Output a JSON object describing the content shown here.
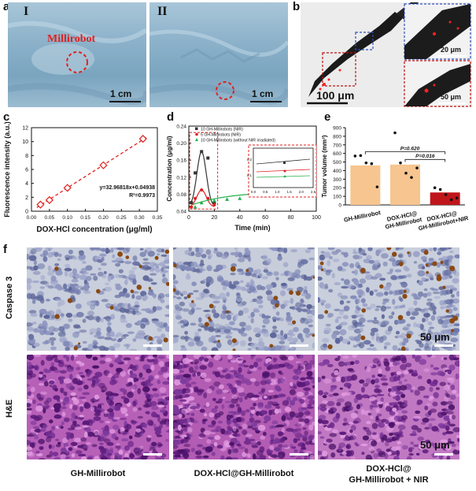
{
  "panels": {
    "a": {
      "label": "a",
      "sub_I": "I",
      "sub_II": "II",
      "millirobot_label": "Millirobot",
      "scale_I": "1 cm",
      "scale_II": "1 cm"
    },
    "b": {
      "label": "b",
      "scale_main": "100 μm",
      "scale_inset_top": "20 μm",
      "scale_inset_bottom": "50 μm"
    },
    "c": {
      "label": "c",
      "equation": "y=32.96818x+0.04938",
      "r2": "R²=0.9973"
    },
    "d": {
      "label": "d"
    },
    "e": {
      "label": "e"
    },
    "f": {
      "label": "f",
      "row1": "Caspase 3",
      "row2": "H&E",
      "scale_top": "50 μm",
      "scale_bottom": "50 μm",
      "col1": "GH-Millirobot",
      "col2": "DOX-HCl@GH-Millirobot",
      "col3_line1": "DOX-HCl@",
      "col3_line2": "GH-Millirobot + NIR"
    }
  },
  "chart_data": [
    {
      "id": "c",
      "type": "scatter",
      "xlabel": "DOX-HCl concentration (μg/ml)",
      "ylabel": "Fluorescence intensity (a.u.)",
      "xlim": [
        0,
        0.35
      ],
      "ylim": [
        0,
        12
      ],
      "xticks": [
        "0.00",
        "0.05",
        "0.10",
        "0.15",
        "0.20",
        "0.25",
        "0.30",
        "0.35"
      ],
      "yticks": [
        "0",
        "2",
        "4",
        "6",
        "8",
        "10",
        "12"
      ],
      "x": [
        0.025,
        0.05,
        0.1,
        0.2,
        0.31
      ],
      "y": [
        0.95,
        1.6,
        3.35,
        6.6,
        10.4
      ],
      "fit": {
        "slope": 32.96818,
        "intercept": 0.04938
      },
      "color": "#e02020"
    },
    {
      "id": "d",
      "type": "line",
      "xlabel": "Time (min)",
      "ylabel": "Concentration (μg/ml)",
      "xlim": [
        0,
        100
      ],
      "ylim": [
        0.04,
        0.24
      ],
      "xticks": [
        "0",
        "20",
        "40",
        "60",
        "80",
        "100"
      ],
      "yticks": [
        "0.04",
        "0.08",
        "0.12",
        "0.16",
        "0.20",
        "0.24"
      ],
      "series": [
        {
          "name": "10 GH-Millirobots (NIR)",
          "color": "#333333",
          "marker": "square",
          "x": [
            2,
            5,
            10,
            15,
            20
          ],
          "y": [
            0.06,
            0.13,
            0.18,
            0.165,
            0.06
          ]
        },
        {
          "name": "5 GH-Millirobots (NIR)",
          "color": "#e02020",
          "marker": "circle",
          "x": [
            2,
            5,
            10,
            15,
            20
          ],
          "y": [
            0.05,
            0.07,
            0.09,
            0.07,
            0.055
          ]
        },
        {
          "name": "10 GH-Millirobots (without NIR irradiated)",
          "color": "#22b14c",
          "marker": "triangle",
          "x": [
            5,
            10,
            20,
            30,
            40,
            50,
            60,
            70,
            80,
            90
          ],
          "y": [
            0.05,
            0.06,
            0.065,
            0.068,
            0.07,
            0.078,
            0.076,
            0.08,
            0.082,
            0.085
          ]
        }
      ],
      "inset": {
        "xticks": [
          "0.0",
          "0.5",
          "1.0",
          "1.5",
          "2.0",
          "2.5"
        ],
        "yticks": [
          "0.1",
          "0.2"
        ]
      }
    },
    {
      "id": "e",
      "type": "bar",
      "ylabel": "Tumor volume (mm³)",
      "ylim": [
        0,
        900
      ],
      "yticks": [
        "0",
        "100",
        "200",
        "300",
        "400",
        "500",
        "600",
        "700",
        "800",
        "900"
      ],
      "categories": [
        "GH-Millirobot",
        "DOX-HCl@ GH-Millirobot",
        "DOX-HCl@ GH-Millirobot+NIR"
      ],
      "values": [
        460,
        470,
        145
      ],
      "colors": [
        "#f7c58f",
        "#f7c58f",
        "#c0161b"
      ],
      "points": [
        [
          570,
          575,
          490,
          480,
          210
        ],
        [
          840,
          490,
          370,
          320,
          430
        ],
        [
          200,
          180,
          120,
          60,
          80
        ]
      ],
      "annotations": [
        "P=0.620",
        "P=0.016"
      ]
    }
  ]
}
